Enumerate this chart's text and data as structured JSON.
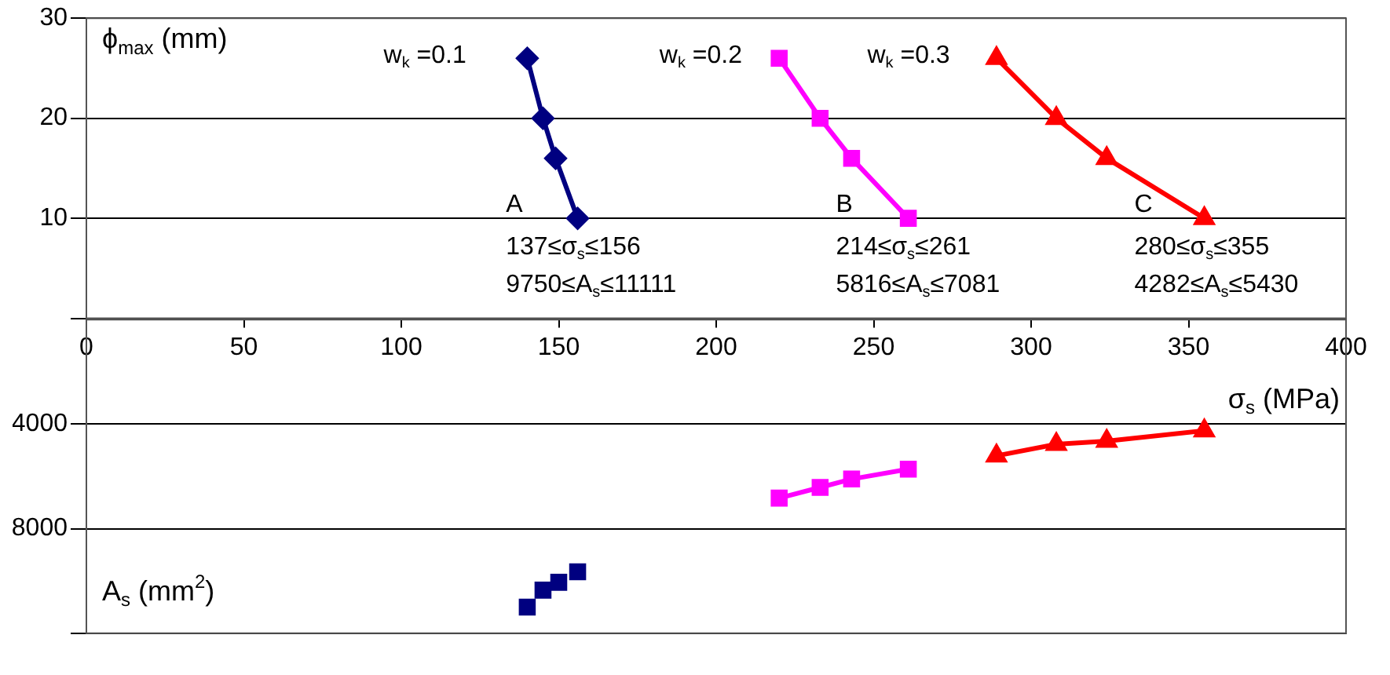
{
  "chart_data": [
    {
      "type": "line",
      "xlabel": "σ$_{s}$ (MPa)",
      "ylabel": "ϕ$_{max}$ (mm)",
      "xlim": [
        0,
        400
      ],
      "xticks": [
        0,
        50,
        100,
        150,
        200,
        250,
        300,
        350,
        400
      ],
      "ylim": [
        0,
        30
      ],
      "yticks": [
        {
          "value": 0,
          "label": null
        },
        10,
        20,
        30
      ],
      "grid": "y",
      "annotations": [
        "w$_{k}$ =0.1",
        "w$_{k}$ =0.2",
        "w$_{k}$ =0.3",
        "A",
        "137≤σ$_{s}$≤156",
        "9750≤A$_{s}$≤11111",
        "B",
        "214≤σ$_{s}$≤261",
        "5816≤A$_{s}$≤7081",
        "C",
        "280≤σ$_{s}$≤355",
        "4282≤A$_{s}$≤5430"
      ],
      "series": [
        {
          "color": "#000080",
          "marker": "diamond",
          "line_style": "solid",
          "x": [
            140,
            145,
            149,
            156
          ],
          "values": [
            26,
            20,
            16,
            10
          ]
        },
        {
          "color": "#ff00ff",
          "marker": "square",
          "line_style": "solid",
          "x": [
            220,
            233,
            243,
            261
          ],
          "values": [
            26,
            20,
            16,
            10
          ]
        },
        {
          "color": "#ff0000",
          "marker": "triangle",
          "line_style": "solid",
          "x": [
            289,
            308,
            324,
            355
          ],
          "values": [
            26,
            20,
            16,
            10
          ]
        }
      ]
    },
    {
      "type": "line",
      "ylabel": "A$_{s}$ (mm$^{2}$)",
      "xlim": [
        0,
        400
      ],
      "ylim": [
        12000,
        0
      ],
      "yticks": [
        4000,
        8000,
        {
          "value": 12000,
          "label": null
        }
      ],
      "grid": "y",
      "tick_labels": "y",
      "series": [
        {
          "type": "scatter",
          "color": "#000080",
          "marker": "square",
          "x": [
            140,
            145,
            150,
            156
          ],
          "values": [
            11000,
            10350,
            10050,
            9650
          ]
        },
        {
          "color": "#ff00ff",
          "marker": "square",
          "line_style": "solid",
          "x": [
            220,
            233,
            243,
            261
          ],
          "values": [
            6830,
            6420,
            6100,
            5720
          ]
        },
        {
          "color": "#ff0000",
          "marker": "triangle",
          "line_style": "solid",
          "x": [
            289,
            308,
            324,
            355
          ],
          "values": [
            5210,
            4770,
            4650,
            4250
          ]
        }
      ]
    }
  ]
}
